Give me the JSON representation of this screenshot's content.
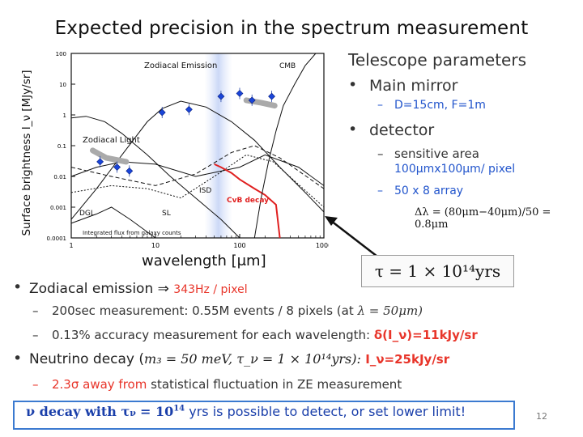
{
  "title": "Expected precision in the spectrum measurement",
  "chart_data": {
    "type": "line",
    "ylabel": "Surface brightness I_ν [MJy/sr]",
    "xlabel": "wavelength [μm]",
    "x_scale": "log",
    "y_scale": "log",
    "xlim": [
      1,
      1000
    ],
    "ylim": [
      0.0001,
      100
    ],
    "x_ticks": [
      "1",
      "10",
      "100",
      "1000"
    ],
    "y_ticks": [
      "100",
      "10",
      "1",
      "0.1",
      "0.01",
      "0.001",
      "0.0001"
    ],
    "annotations": [
      "Zodiacal Emission",
      "CMB",
      "Zodiacal Light",
      "ISD",
      "CvB decay",
      "DGL",
      "SL",
      "Integrated flux from galaxy counts"
    ],
    "series": [
      {
        "name": "CvB decay",
        "color": "#e02020",
        "points": [
          [
            50,
            0.025
          ],
          [
            60,
            0.02
          ],
          [
            80,
            0.013
          ],
          [
            100,
            0.008
          ],
          [
            150,
            0.004
          ],
          [
            200,
            0.0025
          ],
          [
            270,
            0.0012
          ],
          [
            300,
            0.0001
          ]
        ]
      },
      {
        "name": "CMB",
        "points": [
          [
            150,
            0.0001
          ],
          [
            180,
            0.002
          ],
          [
            220,
            0.03
          ],
          [
            270,
            0.3
          ],
          [
            330,
            2
          ],
          [
            450,
            10
          ],
          [
            600,
            40
          ],
          [
            800,
            100
          ]
        ]
      }
    ],
    "data_points": [
      {
        "x": 2.2,
        "y": 0.03
      },
      {
        "x": 3.5,
        "y": 0.02
      },
      {
        "x": 4.9,
        "y": 0.015
      },
      {
        "x": 12,
        "y": 1.2
      },
      {
        "x": 25,
        "y": 1.5
      },
      {
        "x": 60,
        "y": 4
      },
      {
        "x": 100,
        "y": 5
      },
      {
        "x": 140,
        "y": 3
      },
      {
        "x": 240,
        "y": 4
      }
    ]
  },
  "telescope": {
    "heading": "Telescope parameters",
    "main_mirror": "Main mirror",
    "mirror_spec": "D=15cm, F=1m",
    "detector": "detector",
    "sensitive_area": "sensitive area",
    "area_value": "100μmx100μm/ pixel",
    "array": "50 x 8 array",
    "delta_lambda": "Δλ = (80μm−40μm)/50 = 0.8μm"
  },
  "tau_box": "τ = 1 × 10¹⁴yrs",
  "bullets": {
    "ze_prefix": "Zodiacal emission ⇒",
    "ze_rate": "343Hz / pixel",
    "sub1_text": "200sec measurement: 0.55M events / 8 pixels (at",
    "sub1_math": "λ = 50μm)",
    "sub2_text": "0.13% accuracy measurement for each wavelength:",
    "sub2_val": "δ(I_ν)=11kJy/sr",
    "nd_prefix": "Neutrino decay (",
    "nd_math": "m₃ = 50 meV, τ_ν = 1 × 10¹⁴yrs):",
    "nd_val": "I_ν=25kJy/sr",
    "sub3_red": "2.3σ away from",
    "sub3_rest": "statistical fluctuation in ZE measurement"
  },
  "bottom": {
    "part1": "ν decay with τ",
    "part2": "= 10",
    "exp": "14",
    "part3": "yrs  is possible to detect, or set lower limit!"
  },
  "page_number": "12"
}
